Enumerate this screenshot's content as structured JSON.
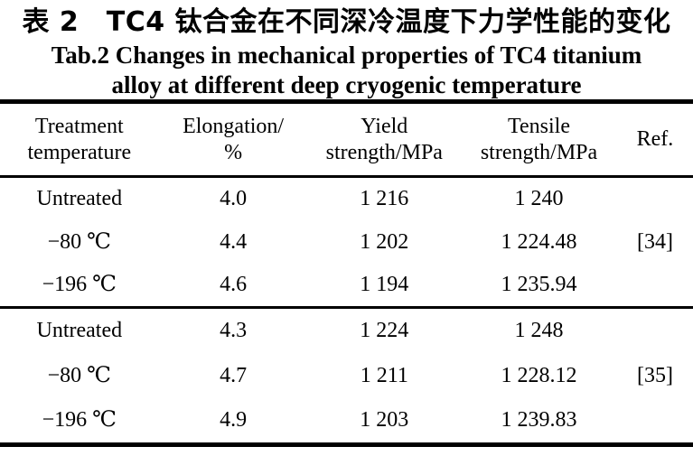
{
  "caption": {
    "zh": "表 2　TC4 钛合金在不同深冷温度下力学性能的变化",
    "en_line1": "Tab.2 Changes in mechanical properties of TC4 titanium",
    "en_line2": "alloy at different deep cryogenic temperature"
  },
  "table": {
    "columns": [
      {
        "line1": "Treatment",
        "line2": "temperature"
      },
      {
        "line1": "Elongation/",
        "line2": "%"
      },
      {
        "line1": "Yield",
        "line2": "strength/MPa"
      },
      {
        "line1": "Tensile",
        "line2": "strength/MPa"
      },
      {
        "line1": "Ref.",
        "line2": ""
      }
    ],
    "groups": [
      {
        "ref": "[34]",
        "rows": [
          {
            "treatment": "Untreated",
            "elongation": "4.0",
            "yield_strength": "1 216",
            "tensile_strength": "1 240",
            "ref": ""
          },
          {
            "treatment": "−80 ℃",
            "elongation": "4.4",
            "yield_strength": "1 202",
            "tensile_strength": "1 224.48",
            "ref": "[34]"
          },
          {
            "treatment": "−196 ℃",
            "elongation": "4.6",
            "yield_strength": "1 194",
            "tensile_strength": "1 235.94",
            "ref": ""
          }
        ]
      },
      {
        "ref": "[35]",
        "rows": [
          {
            "treatment": "Untreated",
            "elongation": "4.3",
            "yield_strength": "1 224",
            "tensile_strength": "1 248",
            "ref": ""
          },
          {
            "treatment": "−80 ℃",
            "elongation": "4.7",
            "yield_strength": "1 211",
            "tensile_strength": "1 228.12",
            "ref": "[35]"
          },
          {
            "treatment": "−196 ℃",
            "elongation": "4.9",
            "yield_strength": "1 203",
            "tensile_strength": "1 239.83",
            "ref": ""
          }
        ]
      }
    ]
  },
  "colors": {
    "text": "#000000",
    "background": "#ffffff",
    "rule": "#000000"
  }
}
